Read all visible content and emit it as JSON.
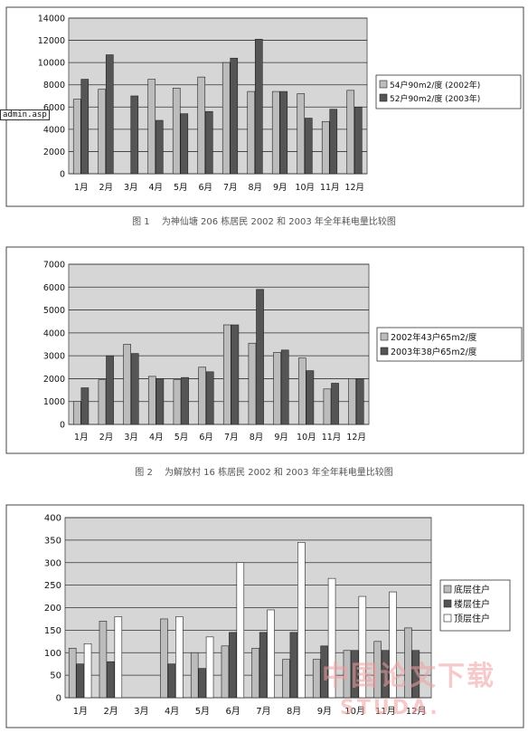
{
  "stamp_text": "admin.asp",
  "watermarks": [
    "中国论文下载",
    "STUDA."
  ],
  "colors": {
    "light": "#bcbcbc",
    "dark": "#555555",
    "white": "#ffffff",
    "plot_bg": "#d6d6d6"
  },
  "captions": [
    "图 1　 为神仙塘 206 栋居民 2002 和 2003 年全年耗电量比较图",
    "图 2　 为解放村 16 栋居民 2002 和 2003 年全年耗电量比较图"
  ],
  "chart_data": [
    {
      "type": "bar",
      "categories": [
        "1月",
        "2月",
        "3月",
        "4月",
        "5月",
        "6月",
        "7月",
        "8月",
        "9月",
        "10月",
        "11月",
        "12月"
      ],
      "yticks": [
        "0",
        "2000",
        "4000",
        "6000",
        "8000",
        "10000",
        "12000",
        "14000"
      ],
      "ylim": [
        0,
        14000
      ],
      "grid": true,
      "legend_placement": "right",
      "series": [
        {
          "name": "54户90m2/度 (2002年)",
          "color": "#bcbcbc",
          "values": [
            6700,
            7600,
            0,
            8500,
            7700,
            8700,
            10000,
            7400,
            7400,
            7200,
            4700,
            7500
          ]
        },
        {
          "name": "52户90m2/度 (2003年)",
          "color": "#555555",
          "values": [
            8500,
            10700,
            7000,
            4800,
            5400,
            5600,
            10400,
            12100,
            7400,
            5000,
            5800,
            6000
          ]
        }
      ]
    },
    {
      "type": "bar",
      "categories": [
        "1月",
        "2月",
        "3月",
        "4月",
        "5月",
        "6月",
        "7月",
        "8月",
        "9月",
        "10月",
        "11月",
        "12月"
      ],
      "yticks": [
        "0",
        "1000",
        "2000",
        "3000",
        "4000",
        "5000",
        "6000",
        "7000"
      ],
      "ylim": [
        0,
        7000
      ],
      "grid": true,
      "legend_placement": "right",
      "series": [
        {
          "name": "2002年43户65m2/度",
          "color": "#bcbcbc",
          "values": [
            1000,
            1950,
            3500,
            2100,
            1950,
            2500,
            4350,
            3550,
            3150,
            2900,
            1550,
            2000
          ]
        },
        {
          "name": "2003年38户65m2/度",
          "color": "#555555",
          "values": [
            1600,
            3000,
            3100,
            2000,
            2050,
            2300,
            4350,
            5900,
            3250,
            2350,
            1800,
            2000
          ]
        }
      ]
    },
    {
      "type": "bar",
      "categories": [
        "1月",
        "2月",
        "3月",
        "4月",
        "5月",
        "6月",
        "7月",
        "8月",
        "9月",
        "10月",
        "11月",
        "12月"
      ],
      "yticks": [
        "0",
        "50",
        "100",
        "150",
        "200",
        "250",
        "300",
        "350",
        "400"
      ],
      "ylim": [
        0,
        400
      ],
      "grid": true,
      "legend_placement": "right",
      "series": [
        {
          "name": "底层住户",
          "color": "#bcbcbc",
          "values": [
            110,
            170,
            0,
            175,
            100,
            115,
            110,
            85,
            85,
            105,
            125,
            155
          ]
        },
        {
          "name": "楼层住户",
          "color": "#555555",
          "values": [
            75,
            80,
            0,
            75,
            65,
            145,
            145,
            145,
            115,
            105,
            105,
            105
          ]
        },
        {
          "name": "顶层住户",
          "color": "#ffffff",
          "values": [
            120,
            180,
            0,
            180,
            135,
            300,
            195,
            345,
            265,
            225,
            235,
            0
          ]
        }
      ]
    }
  ]
}
